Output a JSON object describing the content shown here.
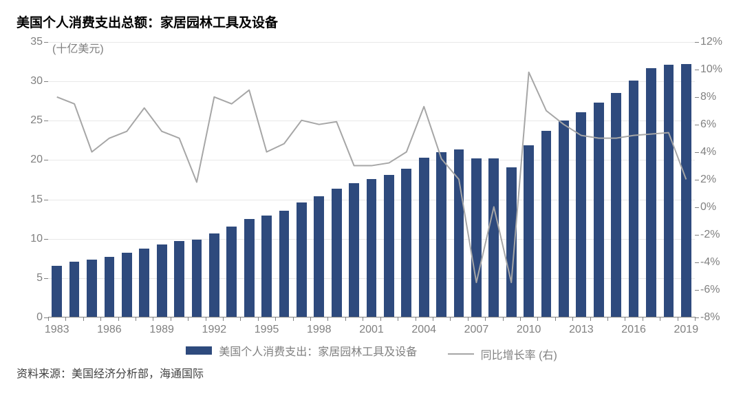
{
  "title": "美国个人消费支出总额：家居园林工具及设备",
  "source": "资料来源：美国经济分析部，海通国际",
  "chart": {
    "type": "bar+line",
    "unit_label": "(十亿美元)",
    "background_color": "#ffffff",
    "bar_color": "#2e4a7d",
    "line_color": "#a6a6a6",
    "grid_color": "#e8e8e8",
    "axis_color": "#808080",
    "label_color": "#808080",
    "title_fontsize": 19,
    "label_fontsize": 16,
    "bar_width_ratio": 0.58,
    "line_width": 2,
    "y_left": {
      "min": 0,
      "max": 35,
      "step": 5
    },
    "y_right": {
      "min": -8,
      "max": 12,
      "step": 2,
      "suffix": "%"
    },
    "x_tick_every": 3,
    "years": [
      1983,
      1984,
      1985,
      1986,
      1987,
      1988,
      1989,
      1990,
      1991,
      1992,
      1993,
      1994,
      1995,
      1996,
      1997,
      1998,
      1999,
      2000,
      2001,
      2002,
      2003,
      2004,
      2005,
      2006,
      2007,
      2008,
      2009,
      2010,
      2011,
      2012,
      2013,
      2014,
      2015,
      2016,
      2017,
      2018,
      2019
    ],
    "bar_values": [
      6.5,
      7.0,
      7.3,
      7.6,
      8.1,
      8.7,
      9.2,
      9.6,
      9.8,
      10.6,
      11.5,
      12.4,
      12.9,
      13.5,
      14.5,
      15.3,
      16.3,
      17.0,
      17.5,
      18.0,
      18.8,
      20.2,
      20.9,
      21.3,
      20.1,
      20.1,
      19.0,
      21.8,
      23.6,
      24.9,
      26.0,
      27.2,
      28.4,
      30.0,
      31.6,
      32.0,
      32.1
    ],
    "line_values": [
      8.0,
      7.5,
      4.0,
      5.0,
      5.5,
      7.2,
      5.5,
      5.0,
      1.8,
      8.0,
      7.5,
      8.5,
      4.0,
      4.6,
      6.3,
      6.0,
      6.2,
      3.0,
      3.0,
      3.2,
      4.0,
      7.3,
      3.5,
      2.0,
      -5.5,
      0.0,
      -5.5,
      9.8,
      7.0,
      6.0,
      5.2,
      5.0,
      5.0,
      5.2,
      5.3,
      5.4,
      2.0
    ],
    "legend": {
      "bar": "美国个人消费支出：家居园林工具及设备",
      "line": "同比增长率 (右)"
    }
  }
}
